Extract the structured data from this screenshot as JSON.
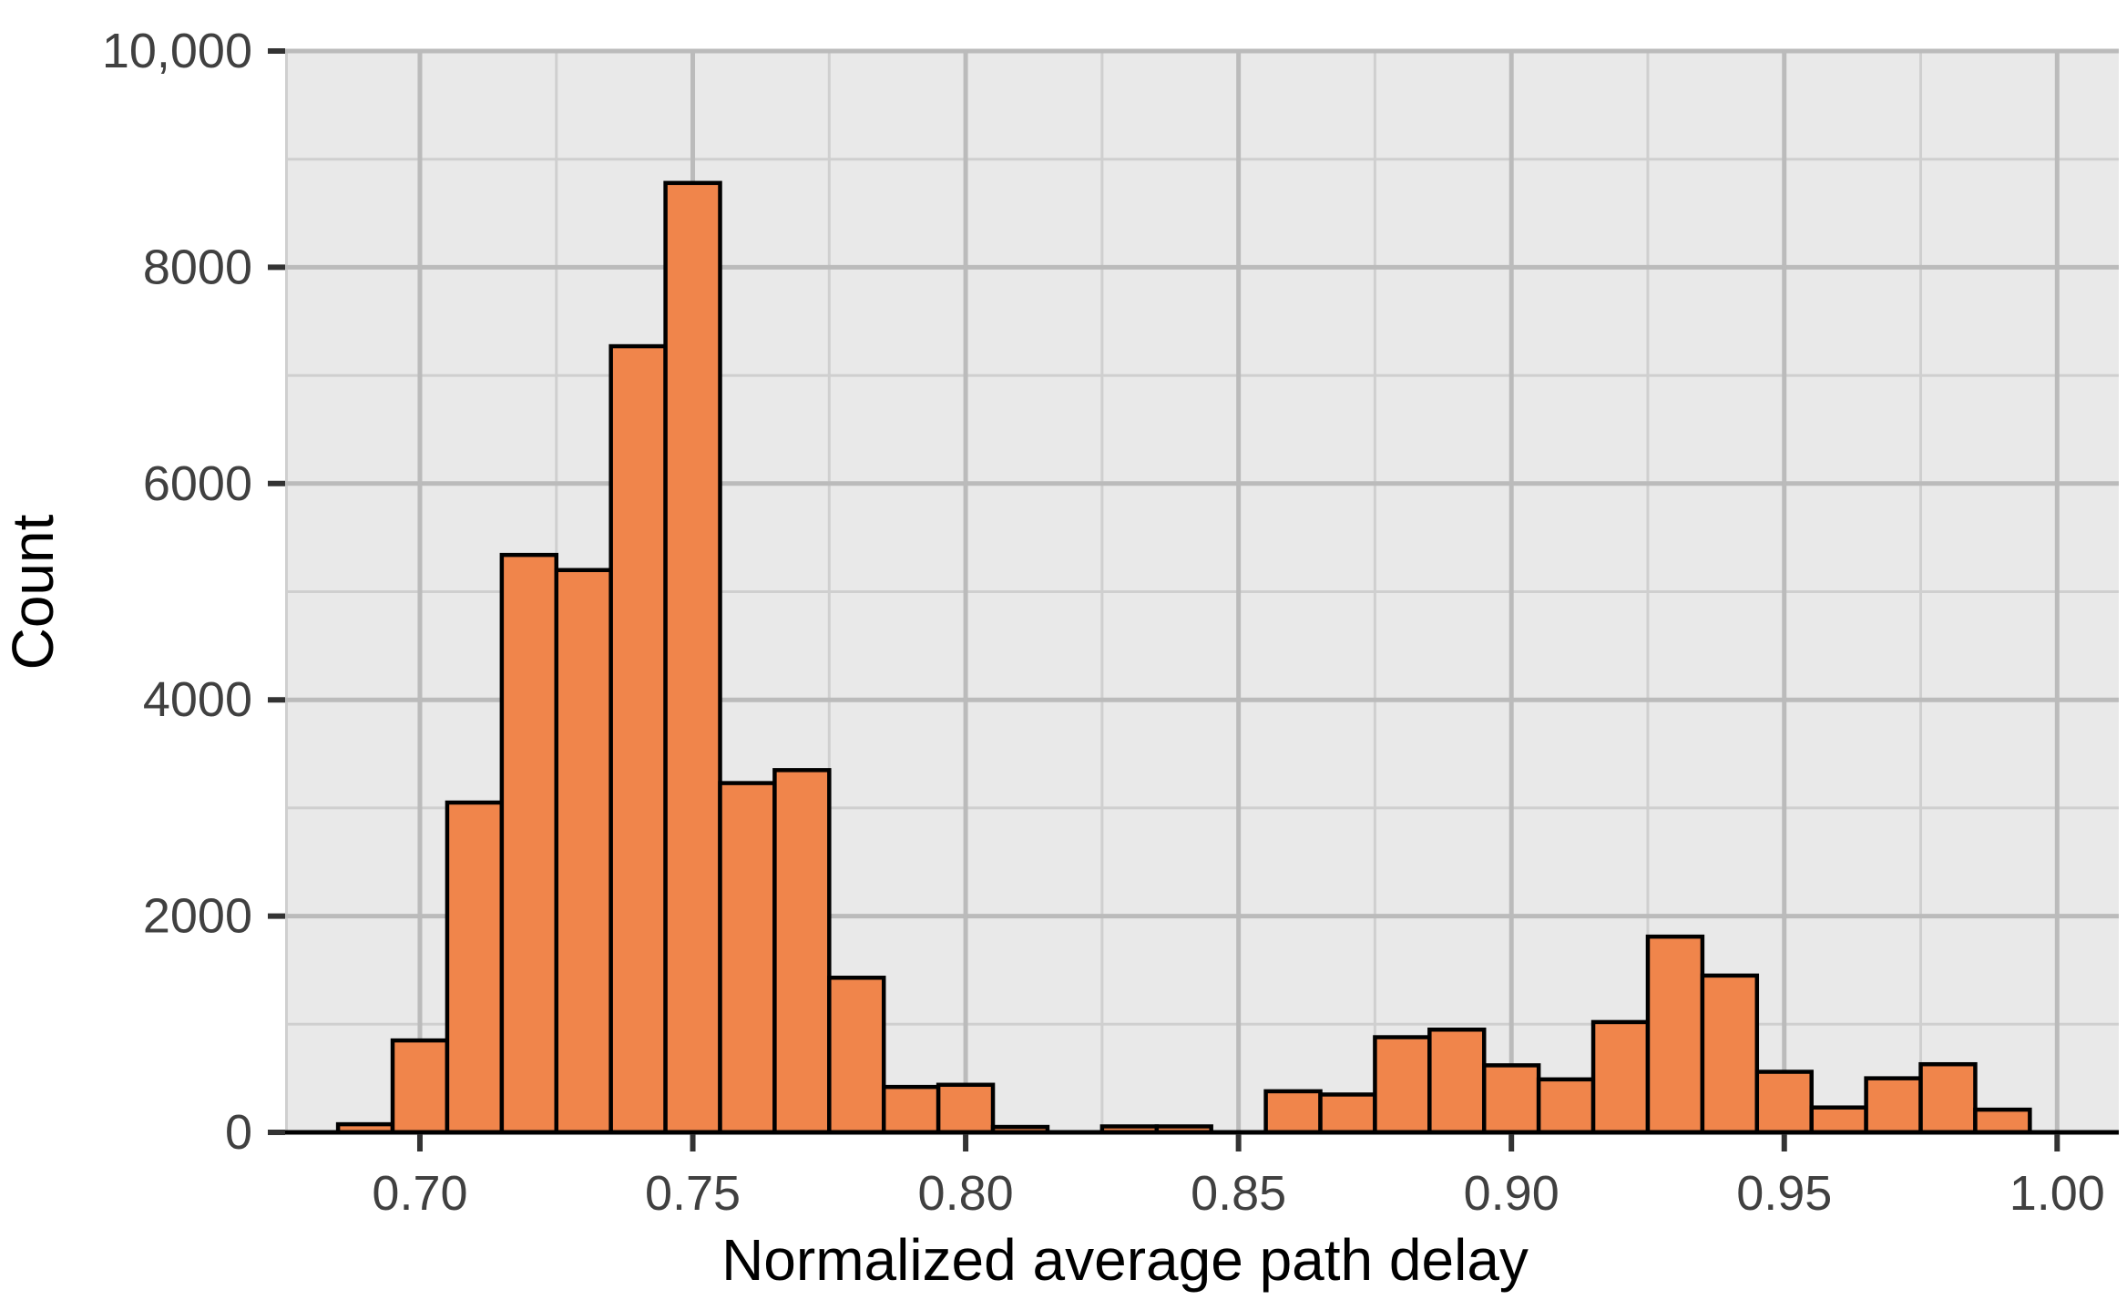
{
  "chart_data": {
    "type": "bar",
    "subtype": "histogram",
    "title": "",
    "xlabel": "Normalized average path delay",
    "ylabel": "Count",
    "bin_width": 0.01,
    "bin_centers": [
      0.69,
      0.7,
      0.71,
      0.72,
      0.73,
      0.74,
      0.75,
      0.76,
      0.77,
      0.78,
      0.79,
      0.8,
      0.81,
      0.82,
      0.83,
      0.84,
      0.85,
      0.86,
      0.87,
      0.88,
      0.89,
      0.9,
      0.91,
      0.92,
      0.93,
      0.94,
      0.95,
      0.96,
      0.97,
      0.98,
      0.99
    ],
    "values": [
      75,
      850,
      3050,
      5340,
      5200,
      7270,
      8780,
      3230,
      3350,
      1430,
      420,
      440,
      50,
      0,
      55,
      55,
      0,
      380,
      350,
      880,
      950,
      620,
      490,
      1020,
      1810,
      1450,
      560,
      230,
      500,
      630,
      210
    ],
    "xlim": [
      0.6753,
      1.0113
    ],
    "ylim": [
      0,
      10000
    ],
    "x_ticks": [
      0.7,
      0.75,
      0.8,
      0.85,
      0.9,
      0.95,
      1.0
    ],
    "x_tick_labels": [
      "0.70",
      "0.75",
      "0.80",
      "0.85",
      "0.90",
      "0.95",
      "1.00"
    ],
    "x_minor_gridlines": [
      0.675,
      0.725,
      0.775,
      0.825,
      0.875,
      0.925,
      0.975
    ],
    "y_ticks": [
      0,
      2000,
      4000,
      6000,
      8000,
      10000
    ],
    "y_tick_labels": [
      "0",
      "2000",
      "4000",
      "6000",
      "8000",
      "10,000"
    ],
    "y_minor_gridlines": [
      1000,
      3000,
      5000,
      7000,
      9000
    ],
    "grid": "on",
    "legend": "none",
    "style": {
      "bar_fill": "#F0854B",
      "bar_stroke": "#000000",
      "panel_background": "#E9E9E9",
      "grid_major_color": "#BBBBBB",
      "grid_minor_color": "#CFCFCF",
      "axis_line_color": "#000000",
      "tick_mark_color": "#333333",
      "tick_label_color": "#404040",
      "axis_title_color": "#000000"
    }
  }
}
